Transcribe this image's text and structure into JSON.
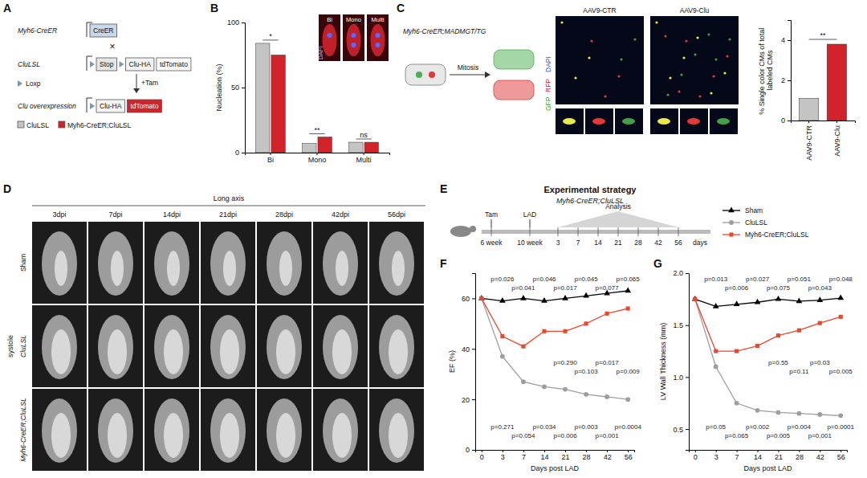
{
  "panel_letters": [
    "A",
    "B",
    "C",
    "D",
    "E",
    "F",
    "G"
  ],
  "panel_a": {
    "rows": [
      {
        "label": "Myh6-CreER",
        "boxes": [
          "CreER"
        ]
      },
      {
        "label": "CluLSL",
        "boxes": [
          "Stop",
          "Clu-HA",
          "tdTomato"
        ]
      },
      {
        "label": "Clu overexpression",
        "boxes": [
          "Clu-HA",
          "tdTomato"
        ]
      }
    ],
    "cross": "×",
    "loxp": "Loxp",
    "tam": "+Tam"
  },
  "panel_b_insets": [
    "DAPI",
    "Bi",
    "Mono",
    "Multi"
  ],
  "panel_c": {
    "genotype": "Myh6-CreER;MADMGT/TG",
    "process": "Mitosis",
    "channels": [
      "GFP",
      "RFP",
      "DAPI"
    ],
    "images": [
      "AAV9-CTR",
      "AAV9-Clu"
    ]
  },
  "panel_d": {
    "header": "Long axis",
    "columns": [
      "3dpi",
      "7dpi",
      "14dpi",
      "21dpi",
      "28dpi",
      "42dpi",
      "56dpi"
    ],
    "rows": [
      "Sham",
      "CluLSL",
      "Myh6-CreER;CluLSL"
    ],
    "phase": "systole"
  },
  "panel_e": {
    "title": "Experimental strategy",
    "subtitle": "Myh6-CreER;CluLSL",
    "events": [
      "Tam",
      "LAD",
      "Analysis"
    ],
    "times": [
      "6 week",
      "10 week",
      "3",
      "7",
      "14",
      "21",
      "28",
      "42",
      "56",
      "days"
    ]
  },
  "chart_data": [
    {
      "type": "bar",
      "y_label": "Nucleation (%)",
      "categories": [
        "Bi",
        "Mono",
        "Multi"
      ],
      "series": [
        {
          "name": "CluLSL",
          "color": "#c4c4c4",
          "values": [
            84,
            7,
            8
          ]
        },
        {
          "name": "Myh6-CreER;CluLSL",
          "color": "#d2232a",
          "values": [
            75,
            12,
            8
          ]
        }
      ],
      "ylim": [
        0,
        100
      ],
      "yticks": [
        0,
        50,
        100
      ],
      "legend": "left",
      "annotations": [
        {
          "category": "Bi",
          "text": "*"
        },
        {
          "category": "Mono",
          "text": "**"
        },
        {
          "category": "Multi",
          "text": "ns"
        }
      ]
    },
    {
      "type": "bar",
      "y_label": "% Single color CMs of total labeled CMs",
      "categories": [
        "AAV9-CTR",
        "AAV9-Clu"
      ],
      "values": [
        1.1,
        3.8
      ],
      "colors": [
        "#c4c4c4",
        "#d2232a"
      ],
      "ylim": [
        0,
        5
      ],
      "yticks": [
        0,
        2,
        4
      ],
      "annotations": [
        {
          "text": "**"
        }
      ]
    },
    {
      "type": "line",
      "x_label": "Days post LAD",
      "y_label": "EF (%)",
      "categories": [
        "0",
        "3",
        "7",
        "14",
        "21",
        "28",
        "42",
        "56"
      ],
      "series": [
        {
          "name": "Sham",
          "color": "#000000",
          "marker": "triangle",
          "values": [
            60,
            59,
            60,
            59,
            60,
            61,
            62,
            63
          ]
        },
        {
          "name": "CluLSL",
          "color": "#9e9e9e",
          "marker": "circle",
          "values": [
            60,
            37,
            27,
            25,
            24,
            22,
            21,
            20
          ]
        },
        {
          "name": "Myh6-CreER;CluLSL",
          "color": "#e8492c",
          "marker": "square",
          "values": [
            60,
            45,
            41,
            47,
            47,
            50,
            54,
            56
          ]
        }
      ],
      "ylim": [
        0,
        70
      ],
      "yticks": [
        0,
        20,
        40,
        60
      ],
      "legend": "top",
      "annotations": [
        {
          "categories": [
            "3",
            "7",
            "14",
            "21",
            "28",
            "42",
            "56"
          ],
          "labels": [
            "p=0.026",
            "p=0.041",
            "p=0.046",
            "p=0.017",
            "p=0.045",
            "p=0.077",
            "p=0.065"
          ]
        },
        {
          "categories": [
            "21",
            "28",
            "42",
            "56"
          ],
          "labels": [
            "p=0.290",
            "p=0.103",
            "p=0.017",
            "p=0.009"
          ]
        },
        {
          "categories": [
            "3",
            "7",
            "14",
            "21",
            "28",
            "42",
            "56"
          ],
          "labels": [
            "p=0.271",
            "p=0.054",
            "p=0.034",
            "p=0.006",
            "p=0.003",
            "p=0.001",
            "p=0.0004"
          ]
        }
      ]
    },
    {
      "type": "line",
      "x_label": "Days post LAD",
      "y_label": "LV Wall Thickness (mm)",
      "categories": [
        "0",
        "3",
        "7",
        "14",
        "21",
        "28",
        "42",
        "56"
      ],
      "series": [
        {
          "color": "#000000",
          "marker": "triangle",
          "values": [
            1.75,
            1.68,
            1.7,
            1.72,
            1.75,
            1.73,
            1.74,
            1.76
          ]
        },
        {
          "color": "#9e9e9e",
          "marker": "circle",
          "values": [
            1.75,
            1.1,
            0.75,
            0.68,
            0.66,
            0.65,
            0.64,
            0.63
          ]
        },
        {
          "color": "#e8492c",
          "marker": "square",
          "values": [
            1.75,
            1.25,
            1.25,
            1.3,
            1.4,
            1.45,
            1.52,
            1.58
          ]
        }
      ],
      "ylim": [
        0.3,
        2.0
      ],
      "yticks": [
        0.5,
        {
          "value": 1,
          "label": "1.0"
        },
        1.5,
        {
          "value": 2,
          "label": "2.0"
        }
      ],
      "annotations": [
        {
          "categories": [
            "3",
            "7",
            "14",
            "21",
            "28",
            "42",
            "56"
          ],
          "labels": [
            "p=0.013",
            "p=0.006",
            "p=0.027",
            "p=0.075",
            "p=0.051",
            "p=0.043",
            "p=0.048"
          ]
        },
        {
          "categories": [
            "21",
            "28",
            "42",
            "56"
          ],
          "labels": [
            "p=0.55",
            "p=0.11",
            "p=0.03",
            "p=0.005"
          ]
        },
        {
          "categories": [
            "3",
            "7",
            "14",
            "21",
            "28",
            "42",
            "56"
          ],
          "labels": [
            "p=0.05",
            "p=0.065",
            "p=0.002",
            "p=0.005",
            "p=0.004",
            "p=0.001",
            "p=0.0001"
          ]
        }
      ]
    }
  ]
}
